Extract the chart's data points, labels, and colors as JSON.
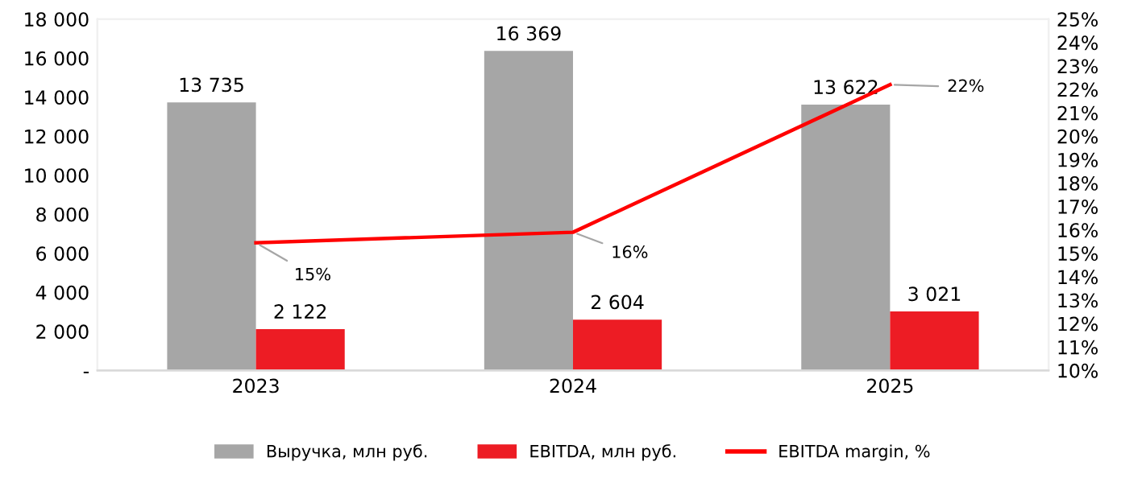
{
  "chart_data": {
    "type": "bar",
    "categories": [
      "2023",
      "2024",
      "2025"
    ],
    "series": [
      {
        "name": "Выручка, млн руб.",
        "color": "#a6a6a6",
        "values": [
          13735,
          16369,
          13622
        ],
        "value_labels": [
          "13 735",
          "16 369",
          "13 622"
        ]
      },
      {
        "name": "EBITDA, млн руб.",
        "color": "#ed1c24",
        "values": [
          2122,
          2604,
          3021
        ],
        "value_labels": [
          "2 122",
          "2 604",
          "3 021"
        ]
      },
      {
        "name": "EBITDA margin, %",
        "type": "line",
        "axis": "y2",
        "color": "#ff0000",
        "values": [
          15.45,
          15.9,
          22.2
        ],
        "value_labels": [
          "15%",
          "16%",
          "22%"
        ]
      }
    ],
    "ylim": [
      0,
      18000
    ],
    "yticks": [
      {
        "value": 0,
        "label": "-"
      },
      {
        "value": 2000,
        "label": "2 000"
      },
      {
        "value": 4000,
        "label": "4 000"
      },
      {
        "value": 6000,
        "label": "6 000"
      },
      {
        "value": 8000,
        "label": "8 000"
      },
      {
        "value": 10000,
        "label": "10 000"
      },
      {
        "value": 12000,
        "label": "12 000"
      },
      {
        "value": 14000,
        "label": "14 000"
      },
      {
        "value": 16000,
        "label": "16 000"
      },
      {
        "value": 18000,
        "label": "18 000"
      }
    ],
    "y2lim": [
      10,
      25
    ],
    "y2ticks": [
      {
        "value": 10,
        "label": "10%"
      },
      {
        "value": 11,
        "label": "11%"
      },
      {
        "value": 12,
        "label": "12%"
      },
      {
        "value": 13,
        "label": "13%"
      },
      {
        "value": 14,
        "label": "14%"
      },
      {
        "value": 15,
        "label": "15%"
      },
      {
        "value": 16,
        "label": "16%"
      },
      {
        "value": 17,
        "label": "17%"
      },
      {
        "value": 18,
        "label": "18%"
      },
      {
        "value": 19,
        "label": "19%"
      },
      {
        "value": 20,
        "label": "20%"
      },
      {
        "value": 21,
        "label": "21%"
      },
      {
        "value": 22,
        "label": "22%"
      },
      {
        "value": 23,
        "label": "23%"
      },
      {
        "value": 24,
        "label": "24%"
      },
      {
        "value": 25,
        "label": "25%"
      }
    ],
    "grid": false,
    "legend": "bottom",
    "marker": "none",
    "line_style": "solid"
  }
}
